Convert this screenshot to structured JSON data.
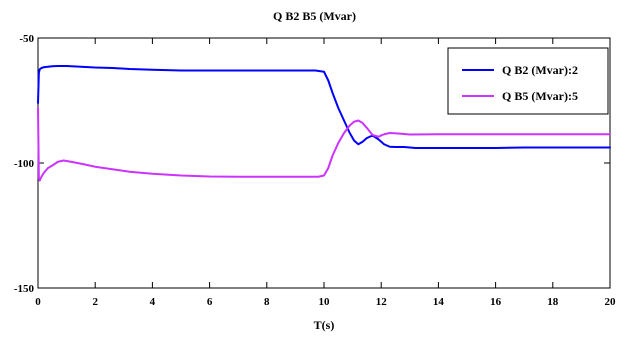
{
  "chart_data": {
    "type": "line",
    "title": "Q B2  B5 (Mvar)",
    "xlabel": "T(s)",
    "ylabel": "",
    "xlim": [
      0,
      20
    ],
    "ylim": [
      -150,
      -50
    ],
    "xticks": [
      0,
      2,
      4,
      6,
      8,
      10,
      12,
      14,
      16,
      18,
      20
    ],
    "yticks": [
      -150,
      -100,
      -50
    ],
    "grid": false,
    "legend_position": "top-right",
    "series": [
      {
        "name": "Q  B2  (Mvar):2",
        "color": "#0000ff",
        "x": [
          0,
          0.03,
          0.06,
          0.12,
          0.2,
          0.35,
          0.5,
          0.7,
          1.0,
          1.5,
          2.0,
          2.6,
          3.2,
          4.0,
          5.0,
          6.0,
          7.0,
          8.0,
          9.0,
          9.7,
          10.0,
          10.15,
          10.3,
          10.5,
          10.7,
          10.9,
          11.05,
          11.2,
          11.35,
          11.5,
          11.7,
          11.9,
          12.1,
          12.3,
          12.5,
          12.8,
          13.2,
          14.0,
          15.0,
          16.0,
          17.0,
          18.0,
          19.0,
          20.0
        ],
        "y": [
          -76,
          -64,
          -62.5,
          -62,
          -61.7,
          -61.5,
          -61.3,
          -61.2,
          -61.2,
          -61.5,
          -61.8,
          -62,
          -62.4,
          -62.7,
          -63,
          -63,
          -63,
          -63,
          -63,
          -63,
          -63.5,
          -67,
          -72,
          -78,
          -83,
          -88,
          -91,
          -92.5,
          -91.5,
          -90,
          -89,
          -90.5,
          -92.5,
          -93.5,
          -93.6,
          -93.6,
          -94,
          -94,
          -94,
          -94,
          -93.8,
          -93.8,
          -93.8,
          -93.8
        ]
      },
      {
        "name": "Q  B5  (Mvar):5",
        "color": "#cc33ff",
        "x": [
          0,
          0.03,
          0.06,
          0.12,
          0.2,
          0.35,
          0.5,
          0.7,
          0.9,
          1.2,
          1.6,
          2.0,
          2.6,
          3.2,
          4.0,
          5.0,
          6.0,
          7.0,
          8.0,
          9.0,
          9.8,
          10.0,
          10.15,
          10.3,
          10.5,
          10.7,
          10.9,
          11.05,
          11.2,
          11.35,
          11.5,
          11.7,
          11.9,
          12.1,
          12.3,
          12.6,
          13.0,
          14.0,
          15.0,
          16.0,
          17.0,
          18.0,
          19.0,
          20.0
        ],
        "y": [
          -78,
          -106,
          -107,
          -105.5,
          -104,
          -102,
          -101,
          -99.5,
          -99,
          -99.6,
          -100.5,
          -101.5,
          -102.5,
          -103.5,
          -104.3,
          -105,
          -105.4,
          -105.5,
          -105.5,
          -105.5,
          -105.5,
          -105,
          -102,
          -97,
          -92,
          -88,
          -85,
          -83.5,
          -83,
          -84,
          -86,
          -88.8,
          -89.5,
          -88.5,
          -88,
          -88.2,
          -88.6,
          -88.5,
          -88.5,
          -88.5,
          -88.5,
          -88.5,
          -88.5,
          -88.5
        ]
      }
    ]
  }
}
